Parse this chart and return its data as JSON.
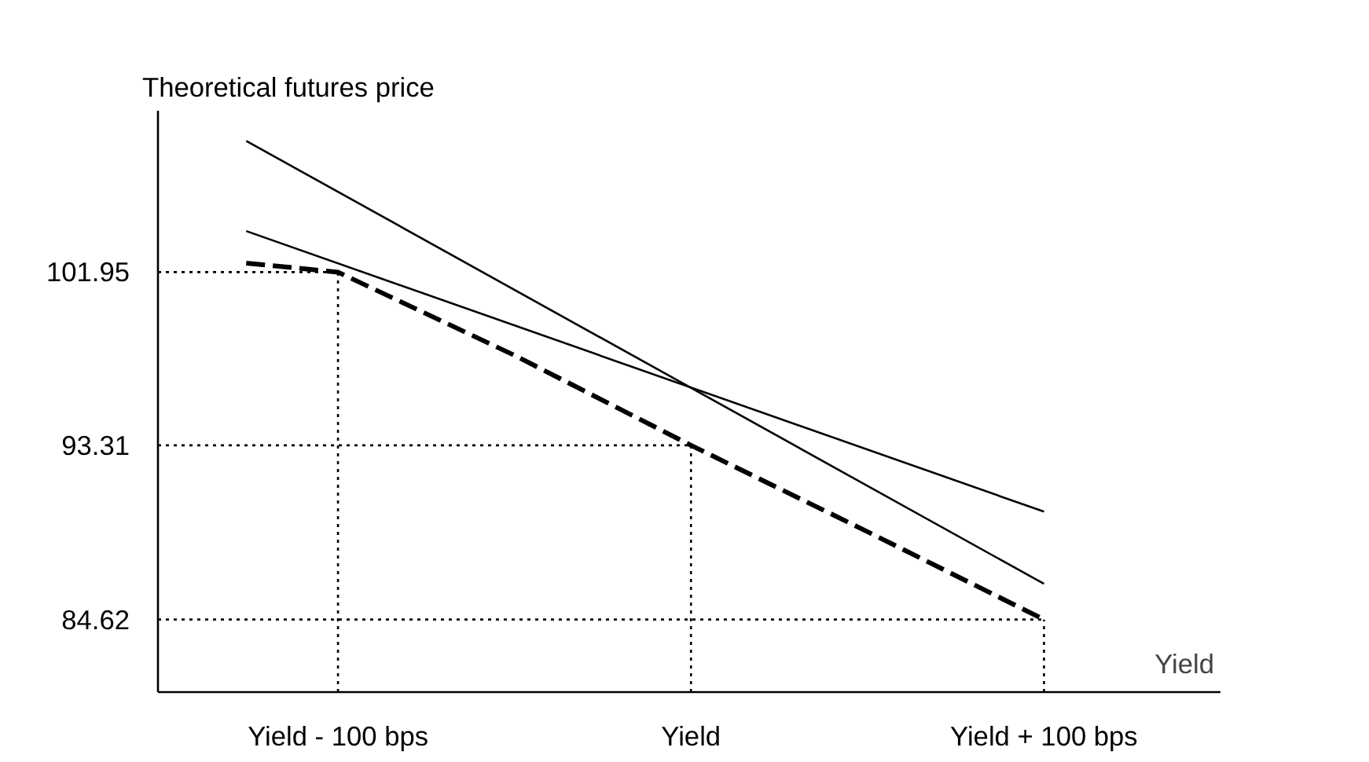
{
  "chart_data": {
    "type": "line",
    "ylabel": "Theoretical futures price",
    "xlabel": "Yield",
    "xlim": [
      -151,
      150
    ],
    "ylim": [
      81,
      110
    ],
    "xticks": [
      {
        "value": -100,
        "label": "Yield - 100 bps"
      },
      {
        "value": 0,
        "label": "Yield"
      },
      {
        "value": 100,
        "label": "Yield + 100 bps"
      }
    ],
    "yticks": [
      84.62,
      93.31,
      101.95
    ],
    "grid": false,
    "series": [
      {
        "color": "#000000",
        "line_style": "solid",
        "x": [
          -126,
          100
        ],
        "values": [
          108.5,
          86.4
        ]
      },
      {
        "color": "#000000",
        "line_style": "solid",
        "x": [
          -126,
          100
        ],
        "values": [
          104,
          90
        ]
      },
      {
        "color": "#000000",
        "line_style": "dashed",
        "x": [
          -126,
          -100,
          -50,
          0,
          50,
          100
        ],
        "values": [
          102.4,
          101.95,
          97.8,
          93.31,
          89.0,
          84.62
        ]
      }
    ],
    "ref_lines": [
      {
        "axis": "y",
        "value": 101.95,
        "line_style": "dotted"
      },
      {
        "axis": "y",
        "value": 93.31,
        "line_style": "dotted"
      },
      {
        "axis": "y",
        "value": 84.62,
        "line_style": "dotted"
      },
      {
        "axis": "x",
        "value": -100,
        "line_style": "dotted"
      },
      {
        "axis": "x",
        "value": 0,
        "line_style": "dotted"
      },
      {
        "axis": "x",
        "value": 100,
        "line_style": "dotted"
      }
    ]
  }
}
